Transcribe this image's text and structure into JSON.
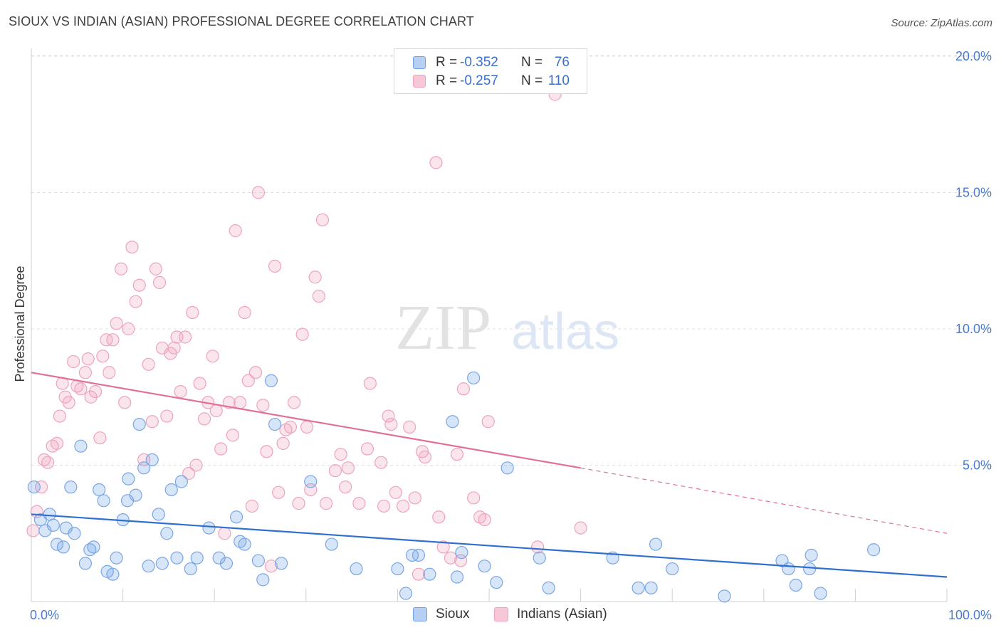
{
  "title": "SIOUX VS INDIAN (ASIAN) PROFESSIONAL DEGREE CORRELATION CHART",
  "source": "Source: ZipAtlas.com",
  "watermark": {
    "zip": "ZIP",
    "atlas": "atlas"
  },
  "legend": {
    "rows": [
      {
        "r_label": "R =",
        "r_value": "-0.352",
        "n_label": "N =",
        "n_value": "76"
      },
      {
        "r_label": "R =",
        "r_value": "-0.257",
        "n_label": "N =",
        "n_value": "110"
      }
    ]
  },
  "bottom_legend": {
    "sioux": "Sioux",
    "indians": "Indians (Asian)"
  },
  "chart_data": {
    "type": "scatter",
    "title": "SIOUX VS INDIAN (ASIAN) PROFESSIONAL DEGREE CORRELATION CHART",
    "xlabel": "",
    "ylabel": "Professional Degree",
    "xlim": [
      0,
      100
    ],
    "ylim": [
      0,
      20.5
    ],
    "x_tick_labels": [
      "0.0%",
      "100.0%"
    ],
    "y_ticks": [
      5,
      10,
      15,
      20
    ],
    "y_tick_labels": [
      "5.0%",
      "10.0%",
      "15.0%",
      "20.0%"
    ],
    "grid": "horizontal dashed",
    "legend_position": "top-center",
    "colors": {
      "sioux": "#6fa0e6",
      "sioux_line": "#2f6fd0",
      "indians": "#f0a0bb",
      "indians_line": "#e0709a"
    },
    "series": [
      {
        "name": "Sioux",
        "stats": {
          "R": -0.352,
          "N": 76
        },
        "trend": {
          "x": [
            0,
            100
          ],
          "y": [
            3.2,
            0.9
          ]
        },
        "points": [
          [
            0.3,
            4.2
          ],
          [
            1.0,
            3.0
          ],
          [
            1.5,
            2.6
          ],
          [
            2.0,
            3.2
          ],
          [
            2.4,
            2.8
          ],
          [
            2.8,
            2.1
          ],
          [
            3.5,
            2.0
          ],
          [
            3.8,
            2.7
          ],
          [
            4.3,
            4.2
          ],
          [
            4.7,
            2.5
          ],
          [
            5.4,
            5.7
          ],
          [
            5.9,
            1.4
          ],
          [
            6.4,
            1.9
          ],
          [
            6.8,
            2.0
          ],
          [
            7.4,
            4.1
          ],
          [
            7.9,
            3.7
          ],
          [
            8.3,
            1.1
          ],
          [
            8.9,
            1.0
          ],
          [
            9.3,
            1.6
          ],
          [
            10.0,
            3.0
          ],
          [
            10.5,
            3.7
          ],
          [
            10.6,
            4.5
          ],
          [
            11.4,
            3.9
          ],
          [
            11.8,
            6.5
          ],
          [
            12.3,
            4.9
          ],
          [
            12.8,
            1.3
          ],
          [
            13.2,
            5.2
          ],
          [
            13.9,
            3.2
          ],
          [
            14.3,
            1.4
          ],
          [
            14.8,
            2.5
          ],
          [
            15.3,
            4.1
          ],
          [
            15.9,
            1.6
          ],
          [
            16.4,
            4.4
          ],
          [
            17.4,
            1.2
          ],
          [
            18.1,
            1.6
          ],
          [
            19.4,
            2.7
          ],
          [
            20.5,
            1.6
          ],
          [
            21.3,
            1.4
          ],
          [
            22.4,
            3.1
          ],
          [
            22.8,
            2.2
          ],
          [
            23.3,
            2.1
          ],
          [
            24.8,
            1.5
          ],
          [
            25.3,
            0.8
          ],
          [
            26.2,
            8.1
          ],
          [
            26.6,
            6.5
          ],
          [
            27.3,
            1.4
          ],
          [
            30.5,
            4.4
          ],
          [
            32.8,
            2.1
          ],
          [
            35.5,
            1.2
          ],
          [
            40.0,
            1.2
          ],
          [
            40.9,
            0.3
          ],
          [
            41.6,
            1.7
          ],
          [
            42.3,
            1.7
          ],
          [
            43.5,
            1.0
          ],
          [
            46.0,
            6.6
          ],
          [
            46.5,
            0.9
          ],
          [
            47.0,
            1.8
          ],
          [
            48.3,
            8.2
          ],
          [
            49.5,
            1.3
          ],
          [
            50.8,
            0.7
          ],
          [
            52.0,
            4.9
          ],
          [
            55.5,
            1.6
          ],
          [
            56.5,
            0.5
          ],
          [
            63.5,
            1.6
          ],
          [
            66.3,
            0.5
          ],
          [
            67.7,
            0.5
          ],
          [
            68.2,
            2.1
          ],
          [
            70.0,
            1.2
          ],
          [
            75.7,
            0.2
          ],
          [
            82.0,
            1.5
          ],
          [
            82.7,
            1.2
          ],
          [
            83.5,
            0.6
          ],
          [
            85.0,
            1.2
          ],
          [
            85.2,
            1.7
          ],
          [
            86.2,
            0.3
          ],
          [
            92.0,
            1.9
          ]
        ]
      },
      {
        "name": "Indians (Asian)",
        "stats": {
          "R": -0.257,
          "N": 110
        },
        "trend": {
          "x": [
            0,
            60
          ],
          "y": [
            8.4,
            4.9
          ]
        },
        "trend_dashed": {
          "x": [
            60,
            100
          ],
          "y": [
            4.9,
            2.5
          ]
        },
        "points": [
          [
            0.2,
            2.6
          ],
          [
            0.6,
            3.3
          ],
          [
            1.1,
            4.2
          ],
          [
            1.4,
            5.2
          ],
          [
            1.8,
            5.1
          ],
          [
            2.3,
            5.7
          ],
          [
            2.8,
            5.8
          ],
          [
            3.1,
            6.8
          ],
          [
            3.4,
            8.0
          ],
          [
            3.7,
            7.5
          ],
          [
            4.1,
            7.3
          ],
          [
            4.6,
            8.8
          ],
          [
            5.0,
            7.9
          ],
          [
            5.4,
            7.8
          ],
          [
            5.9,
            8.4
          ],
          [
            6.2,
            8.9
          ],
          [
            6.5,
            7.5
          ],
          [
            7.0,
            7.7
          ],
          [
            7.5,
            6.0
          ],
          [
            7.8,
            9.0
          ],
          [
            8.2,
            9.6
          ],
          [
            8.5,
            8.4
          ],
          [
            8.9,
            9.6
          ],
          [
            9.3,
            10.2
          ],
          [
            9.8,
            12.2
          ],
          [
            10.2,
            7.3
          ],
          [
            10.6,
            10.0
          ],
          [
            11.0,
            13.0
          ],
          [
            11.4,
            11.0
          ],
          [
            11.8,
            11.6
          ],
          [
            12.3,
            5.2
          ],
          [
            12.8,
            8.7
          ],
          [
            13.2,
            6.6
          ],
          [
            13.6,
            12.2
          ],
          [
            14.0,
            11.7
          ],
          [
            14.3,
            9.3
          ],
          [
            14.8,
            6.8
          ],
          [
            15.2,
            9.1
          ],
          [
            15.6,
            9.3
          ],
          [
            15.9,
            9.7
          ],
          [
            16.3,
            7.7
          ],
          [
            16.8,
            9.7
          ],
          [
            17.2,
            4.7
          ],
          [
            17.6,
            10.6
          ],
          [
            18.0,
            5.0
          ],
          [
            18.4,
            8.0
          ],
          [
            18.9,
            6.7
          ],
          [
            19.3,
            7.3
          ],
          [
            19.8,
            9.0
          ],
          [
            20.2,
            7.0
          ],
          [
            20.7,
            5.6
          ],
          [
            21.1,
            2.5
          ],
          [
            21.6,
            7.3
          ],
          [
            22.0,
            6.1
          ],
          [
            22.3,
            13.6
          ],
          [
            22.8,
            7.3
          ],
          [
            23.3,
            10.6
          ],
          [
            23.7,
            8.1
          ],
          [
            24.1,
            3.5
          ],
          [
            24.5,
            8.4
          ],
          [
            24.8,
            15.0
          ],
          [
            25.3,
            7.2
          ],
          [
            25.7,
            5.5
          ],
          [
            26.2,
            1.3
          ],
          [
            26.6,
            12.3
          ],
          [
            27.0,
            4.0
          ],
          [
            27.5,
            5.8
          ],
          [
            27.8,
            6.3
          ],
          [
            28.3,
            6.4
          ],
          [
            28.7,
            7.3
          ],
          [
            29.2,
            3.6
          ],
          [
            29.6,
            9.8
          ],
          [
            30.1,
            6.4
          ],
          [
            30.5,
            4.1
          ],
          [
            31.0,
            11.9
          ],
          [
            31.4,
            11.2
          ],
          [
            31.8,
            14.0
          ],
          [
            32.2,
            3.6
          ],
          [
            33.2,
            4.8
          ],
          [
            33.8,
            5.4
          ],
          [
            34.3,
            4.2
          ],
          [
            34.6,
            4.9
          ],
          [
            35.8,
            3.6
          ],
          [
            36.7,
            5.6
          ],
          [
            37.0,
            8.0
          ],
          [
            38.2,
            5.1
          ],
          [
            38.5,
            3.5
          ],
          [
            39.0,
            6.8
          ],
          [
            39.3,
            6.5
          ],
          [
            39.8,
            4.0
          ],
          [
            40.6,
            3.5
          ],
          [
            41.3,
            6.4
          ],
          [
            41.9,
            3.8
          ],
          [
            42.3,
            1.0
          ],
          [
            42.7,
            5.5
          ],
          [
            43.0,
            5.3
          ],
          [
            44.2,
            16.1
          ],
          [
            44.5,
            3.1
          ],
          [
            45.0,
            2.0
          ],
          [
            45.8,
            1.6
          ],
          [
            46.5,
            5.4
          ],
          [
            46.9,
            1.5
          ],
          [
            47.2,
            7.8
          ],
          [
            48.3,
            3.8
          ],
          [
            49.0,
            3.1
          ],
          [
            49.5,
            3.0
          ],
          [
            49.9,
            6.6
          ],
          [
            55.3,
            2.0
          ],
          [
            57.2,
            18.6
          ],
          [
            60.0,
            2.7
          ]
        ]
      }
    ]
  }
}
